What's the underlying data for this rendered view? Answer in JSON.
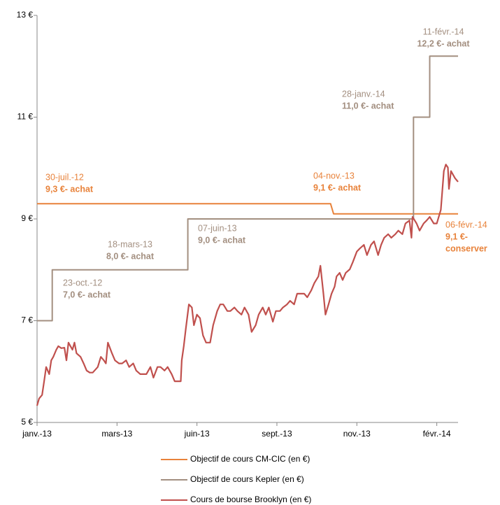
{
  "chart_data": {
    "type": "line",
    "xlim": [
      0,
      416
    ],
    "xticks": [
      {
        "value": 0,
        "label": "janv.-13"
      },
      {
        "value": 79,
        "label": "mars-13"
      },
      {
        "value": 158,
        "label": "juin-13"
      },
      {
        "value": 237,
        "label": "sept.-13"
      },
      {
        "value": 316,
        "label": "nov.-13"
      },
      {
        "value": 395,
        "label": "févr.-14"
      }
    ],
    "ylim": [
      5,
      13
    ],
    "yticks": [
      {
        "value": 5,
        "label": "5 €"
      },
      {
        "value": 7,
        "label": "7 €"
      },
      {
        "value": 9,
        "label": "9 €"
      },
      {
        "value": 11,
        "label": "11 €"
      },
      {
        "value": 13,
        "label": "13 €"
      }
    ],
    "series": [
      {
        "name": "Objectif de cours CM-CIC (en €)",
        "color": "#e8823a",
        "x": [
          0,
          290,
          293,
          416
        ],
        "values": [
          9.3,
          9.3,
          9.1,
          9.1
        ]
      },
      {
        "name": "Objectif de cours Kepler (en €)",
        "color": "#a38f80",
        "x": [
          0,
          15,
          15,
          149,
          149,
          372,
          372,
          388,
          388,
          416
        ],
        "values": [
          7,
          7,
          8,
          8,
          9,
          9,
          11,
          11,
          12.2,
          12.2
        ]
      },
      {
        "name": "Cours de bourse Brooklyn (en €)",
        "color": "#c0504d",
        "x": [
          0,
          2,
          5,
          7,
          9,
          12,
          14,
          16,
          19,
          21,
          24,
          27,
          29,
          31,
          35,
          37,
          39,
          43,
          46,
          49,
          52,
          55,
          60,
          63,
          66,
          68,
          70,
          74,
          77,
          81,
          84,
          88,
          91,
          95,
          98,
          102,
          105,
          108,
          112,
          115,
          119,
          122,
          126,
          129,
          133,
          136,
          140,
          142,
          143,
          145,
          147,
          150,
          153,
          155,
          158,
          161,
          164,
          167,
          171,
          174,
          178,
          181,
          184,
          188,
          191,
          195,
          198,
          202,
          205,
          209,
          212,
          216,
          219,
          223,
          226,
          229,
          233,
          236,
          240,
          243,
          247,
          250,
          254,
          257,
          261,
          264,
          267,
          271,
          274,
          278,
          280,
          283,
          285,
          288,
          291,
          294,
          296,
          299,
          302,
          305,
          309,
          312,
          316,
          319,
          323,
          326,
          330,
          333,
          337,
          340,
          343,
          347,
          350,
          354,
          357,
          361,
          364,
          368,
          370,
          371,
          375,
          378,
          382,
          385,
          388,
          392,
          395,
          399,
          402,
          404,
          406,
          407,
          409,
          413,
          416
        ],
        "values": [
          5.33,
          5.47,
          5.54,
          5.81,
          6.09,
          5.95,
          6.22,
          6.29,
          6.43,
          6.5,
          6.46,
          6.47,
          6.22,
          6.57,
          6.43,
          6.57,
          6.36,
          6.29,
          6.16,
          6.02,
          5.98,
          5.98,
          6.09,
          6.29,
          6.22,
          6.16,
          6.57,
          6.36,
          6.22,
          6.16,
          6.16,
          6.22,
          6.09,
          6.16,
          6.02,
          5.95,
          5.95,
          5.95,
          6.09,
          5.88,
          6.09,
          6.09,
          6.02,
          6.09,
          5.95,
          5.81,
          5.81,
          5.81,
          6.22,
          6.5,
          6.84,
          7.32,
          7.26,
          6.91,
          7.12,
          7.05,
          6.71,
          6.57,
          6.57,
          6.91,
          7.19,
          7.32,
          7.32,
          7.19,
          7.19,
          7.26,
          7.19,
          7.12,
          7.26,
          7.12,
          6.78,
          6.91,
          7.12,
          7.26,
          7.12,
          7.26,
          6.98,
          7.19,
          7.19,
          7.26,
          7.32,
          7.39,
          7.32,
          7.53,
          7.53,
          7.53,
          7.46,
          7.6,
          7.74,
          7.87,
          8.08,
          7.53,
          7.12,
          7.32,
          7.53,
          7.67,
          7.87,
          7.94,
          7.8,
          7.94,
          8.01,
          8.15,
          8.36,
          8.42,
          8.49,
          8.29,
          8.49,
          8.56,
          8.29,
          8.49,
          8.63,
          8.7,
          8.63,
          8.7,
          8.77,
          8.7,
          8.91,
          8.97,
          8.63,
          9.04,
          8.91,
          8.77,
          8.91,
          8.97,
          9.04,
          8.91,
          8.91,
          9.18,
          9.94,
          10.07,
          10.01,
          9.59,
          9.94,
          9.8,
          9.73
        ]
      }
    ],
    "annotations": [
      {
        "date": "30-juil.-12",
        "label": [
          "9,3 €- achat"
        ],
        "color": "#e8823a"
      },
      {
        "date": "23-oct.-12",
        "label": [
          "7,0 €- achat"
        ],
        "color": "#a38f80"
      },
      {
        "date": "18-mars-13",
        "label": [
          "8,0 €- achat"
        ],
        "color": "#a38f80"
      },
      {
        "date": "07-juin-13",
        "label": [
          "9,0 €- achat"
        ],
        "color": "#a38f80"
      },
      {
        "date": "04-nov.-13",
        "label": [
          "9,1 €- achat"
        ],
        "color": "#e8823a"
      },
      {
        "date": "28-janv.-14",
        "label": [
          "11,0 €- achat"
        ],
        "color": "#a38f80"
      },
      {
        "date": "11-févr.-14",
        "label": [
          "12,2 €- achat"
        ],
        "color": "#a38f80"
      },
      {
        "date": "06-févr.-14",
        "label": [
          "9,1 €-",
          "conserver"
        ],
        "color": "#e8823a"
      }
    ]
  }
}
